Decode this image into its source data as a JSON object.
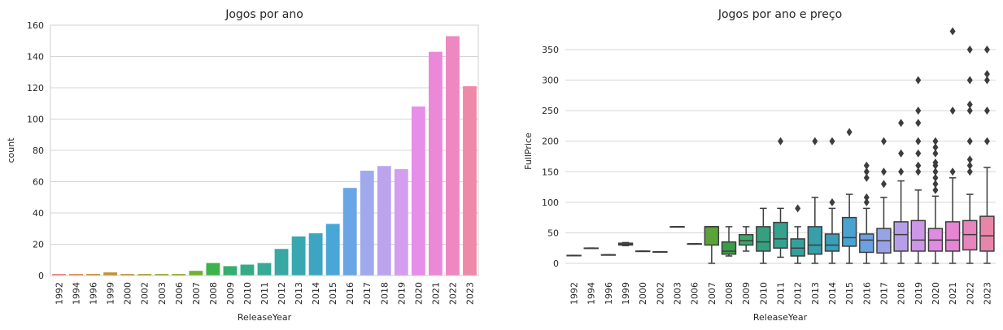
{
  "chart_data": [
    {
      "type": "bar",
      "title": "Jogos por ano",
      "xlabel": "ReleaseYear",
      "ylabel": "count",
      "ylim": [
        0,
        160
      ],
      "yticks": [
        0,
        20,
        40,
        60,
        80,
        100,
        120,
        140,
        160
      ],
      "grid": true,
      "categories": [
        "1992",
        "1994",
        "1996",
        "1999",
        "2000",
        "2002",
        "2003",
        "2006",
        "2007",
        "2008",
        "2009",
        "2010",
        "2011",
        "2012",
        "2013",
        "2014",
        "2015",
        "2016",
        "2017",
        "2018",
        "2019",
        "2020",
        "2021",
        "2022",
        "2023"
      ],
      "values": [
        1,
        1,
        1,
        2,
        1,
        1,
        1,
        1,
        3,
        8,
        6,
        7,
        8,
        17,
        25,
        27,
        33,
        56,
        67,
        70,
        68,
        108,
        143,
        153,
        121
      ],
      "colors": [
        "#e8807b",
        "#e0874c",
        "#d18b32",
        "#c39232",
        "#b69a33",
        "#a9a030",
        "#9aa531",
        "#8aaa31",
        "#6fb030",
        "#3eb24b",
        "#35ae71",
        "#36ab86",
        "#37a997",
        "#38a8a5",
        "#39a7b2",
        "#3ba5c2",
        "#48a7d7",
        "#6aa5e6",
        "#9fa9ec",
        "#bca3ee",
        "#d49ded",
        "#e68ee9",
        "#ec88d8",
        "#ee88c0",
        "#ee89aa"
      ]
    },
    {
      "type": "box",
      "title": "Jogos por ano e preço",
      "xlabel": "ReleaseYear",
      "ylabel": "FullPrice",
      "ylim": [
        -20,
        390
      ],
      "yticks": [
        0,
        50,
        100,
        150,
        200,
        250,
        300,
        350
      ],
      "grid": true,
      "categories": [
        "1992",
        "1994",
        "1996",
        "1999",
        "2000",
        "2002",
        "2003",
        "2006",
        "2007",
        "2008",
        "2009",
        "2010",
        "2011",
        "2012",
        "2013",
        "2014",
        "2015",
        "2016",
        "2017",
        "2018",
        "2019",
        "2020",
        "2021",
        "2022",
        "2023"
      ],
      "boxes": [
        {
          "q1": 13,
          "median": 13,
          "q3": 13,
          "wlo": 13,
          "whi": 13,
          "outliers": []
        },
        {
          "q1": 25,
          "median": 25,
          "q3": 25,
          "wlo": 25,
          "whi": 25,
          "outliers": []
        },
        {
          "q1": 14,
          "median": 14,
          "q3": 14,
          "wlo": 14,
          "whi": 14,
          "outliers": []
        },
        {
          "q1": 30,
          "median": 31,
          "q3": 33,
          "wlo": 29,
          "whi": 34,
          "outliers": []
        },
        {
          "q1": 20,
          "median": 20,
          "q3": 20,
          "wlo": 20,
          "whi": 20,
          "outliers": []
        },
        {
          "q1": 19,
          "median": 19,
          "q3": 19,
          "wlo": 19,
          "whi": 19,
          "outliers": []
        },
        {
          "q1": 60,
          "median": 60,
          "q3": 60,
          "wlo": 60,
          "whi": 60,
          "outliers": []
        },
        {
          "q1": 32,
          "median": 32,
          "q3": 32,
          "wlo": 32,
          "whi": 32,
          "outliers": []
        },
        {
          "q1": 30,
          "median": 60,
          "q3": 60,
          "wlo": 0,
          "whi": 60,
          "outliers": []
        },
        {
          "q1": 15,
          "median": 20,
          "q3": 35,
          "wlo": 12,
          "whi": 60,
          "outliers": []
        },
        {
          "q1": 30,
          "median": 37,
          "q3": 47,
          "wlo": 20,
          "whi": 60,
          "outliers": []
        },
        {
          "q1": 20,
          "median": 35,
          "q3": 60,
          "wlo": 0,
          "whi": 90,
          "outliers": []
        },
        {
          "q1": 25,
          "median": 40,
          "q3": 67,
          "wlo": 10,
          "whi": 90,
          "outliers": [
            200
          ]
        },
        {
          "q1": 12,
          "median": 25,
          "q3": 40,
          "wlo": 0,
          "whi": 60,
          "outliers": [
            90
          ]
        },
        {
          "q1": 15,
          "median": 30,
          "q3": 60,
          "wlo": 0,
          "whi": 108,
          "outliers": [
            200
          ]
        },
        {
          "q1": 20,
          "median": 30,
          "q3": 48,
          "wlo": 0,
          "whi": 90,
          "outliers": [
            100,
            200
          ]
        },
        {
          "q1": 28,
          "median": 42,
          "q3": 75,
          "wlo": 0,
          "whi": 113,
          "outliers": [
            215
          ]
        },
        {
          "q1": 18,
          "median": 38,
          "q3": 48,
          "wlo": 0,
          "whi": 90,
          "outliers": [
            100,
            108,
            140,
            150,
            160
          ]
        },
        {
          "q1": 17,
          "median": 37,
          "q3": 57,
          "wlo": 0,
          "whi": 108,
          "outliers": [
            130,
            150,
            200
          ]
        },
        {
          "q1": 20,
          "median": 47,
          "q3": 68,
          "wlo": 0,
          "whi": 135,
          "outliers": [
            150,
            180,
            230
          ]
        },
        {
          "q1": 20,
          "median": 38,
          "q3": 70,
          "wlo": 0,
          "whi": 120,
          "outliers": [
            150,
            160,
            180,
            200,
            230,
            250,
            300
          ]
        },
        {
          "q1": 20,
          "median": 38,
          "q3": 57,
          "wlo": 0,
          "whi": 110,
          "outliers": [
            120,
            130,
            140,
            150,
            160,
            165,
            180,
            190,
            200
          ]
        },
        {
          "q1": 20,
          "median": 38,
          "q3": 68,
          "wlo": 0,
          "whi": 140,
          "outliers": [
            150,
            250,
            380
          ]
        },
        {
          "q1": 22,
          "median": 47,
          "q3": 70,
          "wlo": 0,
          "whi": 113,
          "outliers": [
            150,
            160,
            170,
            200,
            250,
            260,
            300,
            350
          ]
        },
        {
          "q1": 20,
          "median": 45,
          "q3": 77,
          "wlo": 0,
          "whi": 157,
          "outliers": [
            200,
            250,
            300,
            310,
            350
          ]
        }
      ],
      "colors": [
        "#e8807b",
        "#e0874c",
        "#d18b32",
        "#c39232",
        "#b69a33",
        "#a9a030",
        "#9aa531",
        "#8aaa31",
        "#5aa33a",
        "#3a9e48",
        "#3ba76a",
        "#34a07f",
        "#35a18e",
        "#35a09b",
        "#369faa",
        "#38a0ba",
        "#4aa2d0",
        "#6ba1e0",
        "#98a3e6",
        "#b79ee8",
        "#cd97e8",
        "#e08be2",
        "#e585d3",
        "#e785bc",
        "#e786a8"
      ]
    }
  ]
}
